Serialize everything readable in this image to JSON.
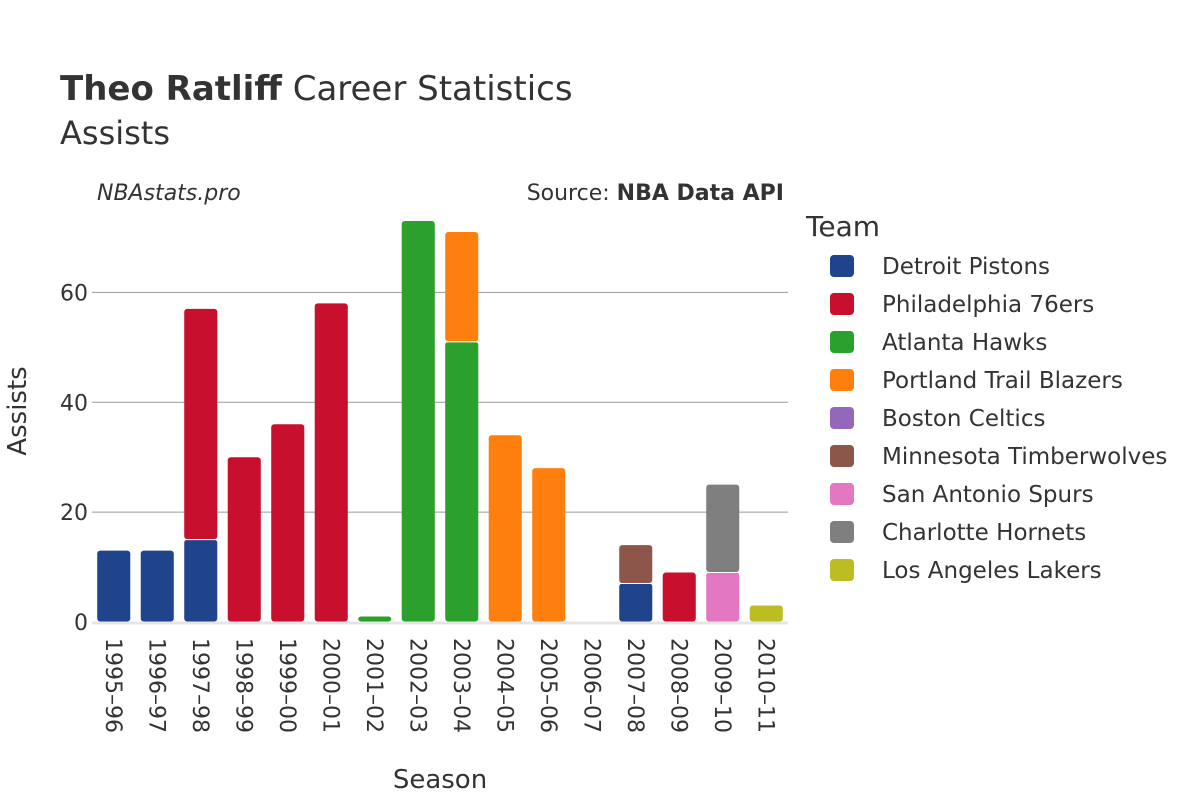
{
  "header": {
    "title_bold": "Theo Ratliff",
    "title_rest": " Career Statistics",
    "subtitle": "Assists",
    "watermark": "NBAstats.pro",
    "source_prefix": "Source: ",
    "source_bold": "NBA Data API"
  },
  "chart_data": {
    "type": "bar",
    "stacked": true,
    "xlabel": "Season",
    "ylabel": "Assists",
    "ylim": [
      0,
      75
    ],
    "yticks": [
      0,
      20,
      40,
      60
    ],
    "grid": true,
    "legend_title": "Team",
    "legend_position": "right",
    "categories": [
      "1995–96",
      "1996–97",
      "1997–98",
      "1998–99",
      "1999–00",
      "2000–01",
      "2001–02",
      "2002–03",
      "2003–04",
      "2004–05",
      "2005–06",
      "2006–07",
      "2007–08",
      "2008–09",
      "2009–10",
      "2010–11"
    ],
    "series": [
      {
        "name": "Detroit Pistons",
        "color": "#1f448c",
        "values": [
          13,
          13,
          15,
          0,
          0,
          0,
          0,
          0,
          0,
          0,
          0,
          0,
          7,
          0,
          0,
          0
        ]
      },
      {
        "name": "Philadelphia 76ers",
        "color": "#c8102e",
        "values": [
          0,
          0,
          42,
          30,
          36,
          58,
          0,
          0,
          0,
          0,
          0,
          0,
          0,
          9,
          0,
          0
        ]
      },
      {
        "name": "Atlanta Hawks",
        "color": "#2ca02c",
        "values": [
          0,
          0,
          0,
          0,
          0,
          0,
          1,
          73,
          51,
          0,
          0,
          0,
          0,
          0,
          0,
          0
        ]
      },
      {
        "name": "Portland Trail Blazers",
        "color": "#ff7f0e",
        "values": [
          0,
          0,
          0,
          0,
          0,
          0,
          0,
          0,
          20,
          34,
          28,
          0,
          0,
          0,
          0,
          0
        ]
      },
      {
        "name": "Boston Celtics",
        "color": "#9467bd",
        "values": [
          0,
          0,
          0,
          0,
          0,
          0,
          0,
          0,
          0,
          0,
          0,
          0,
          0,
          0,
          0,
          0
        ]
      },
      {
        "name": "Minnesota Timberwolves",
        "color": "#8c564b",
        "values": [
          0,
          0,
          0,
          0,
          0,
          0,
          0,
          0,
          0,
          0,
          0,
          0,
          7,
          0,
          0,
          0
        ]
      },
      {
        "name": "San Antonio Spurs",
        "color": "#e377c2",
        "values": [
          0,
          0,
          0,
          0,
          0,
          0,
          0,
          0,
          0,
          0,
          0,
          0,
          0,
          0,
          9,
          0
        ]
      },
      {
        "name": "Charlotte Hornets",
        "color": "#7f7f7f",
        "values": [
          0,
          0,
          0,
          0,
          0,
          0,
          0,
          0,
          0,
          0,
          0,
          0,
          0,
          0,
          16,
          0
        ]
      },
      {
        "name": "Los Angeles Lakers",
        "color": "#bcbd22",
        "values": [
          0,
          0,
          0,
          0,
          0,
          0,
          0,
          0,
          0,
          0,
          0,
          0,
          0,
          0,
          0,
          3
        ]
      }
    ]
  }
}
